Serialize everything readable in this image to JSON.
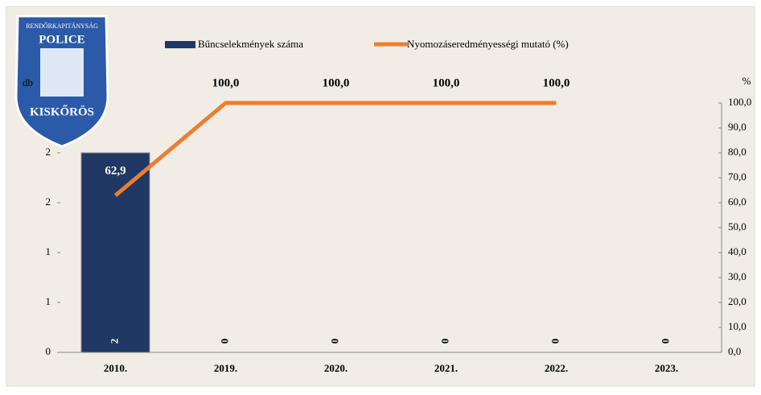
{
  "logo": {
    "top": "RENDŐRKAPITÁNYSÁG",
    "middle": "POLICE",
    "bottom": "KISKŐRÖS"
  },
  "chart_data": {
    "type": "bar-line",
    "categories": [
      "2010.",
      "2019.",
      "2020.",
      "2021.",
      "2022.",
      "2023."
    ],
    "y_label": "db",
    "y2_label": "%",
    "ylim": [
      0,
      2.5
    ],
    "yticks": [
      0,
      {
        "value": 0.5,
        "label": "1"
      },
      1,
      {
        "value": 1.5,
        "label": "2"
      },
      2
    ],
    "y2lim": [
      0,
      100
    ],
    "y2ticks": [
      {
        "value": 0,
        "label": "0,0"
      },
      {
        "value": 10,
        "label": "10,0"
      },
      {
        "value": 20,
        "label": "20,0"
      },
      {
        "value": 30,
        "label": "30,0"
      },
      {
        "value": 40,
        "label": "40,0"
      },
      {
        "value": 50,
        "label": "50,0"
      },
      {
        "value": 60,
        "label": "60,0"
      },
      {
        "value": 70,
        "label": "70,0"
      },
      {
        "value": 80,
        "label": "80,0"
      },
      {
        "value": 90,
        "label": "90,0"
      },
      {
        "value": 100,
        "label": "100,0"
      }
    ],
    "legend": "top",
    "series": [
      {
        "name": "Bűncselekmények száma",
        "type": "bar",
        "color": "#1f3864",
        "values": [
          2,
          0,
          0,
          0,
          0,
          0
        ]
      },
      {
        "name": "Nyomozáseredményességi mutató (%)",
        "type": "line",
        "axis": "y2",
        "color": "#ed7d31",
        "values": [
          62.9,
          100,
          100,
          100,
          100,
          null
        ],
        "value_labels": [
          "62,9",
          "100,0",
          "100,0",
          "100,0",
          "100,0",
          null
        ]
      }
    ]
  }
}
